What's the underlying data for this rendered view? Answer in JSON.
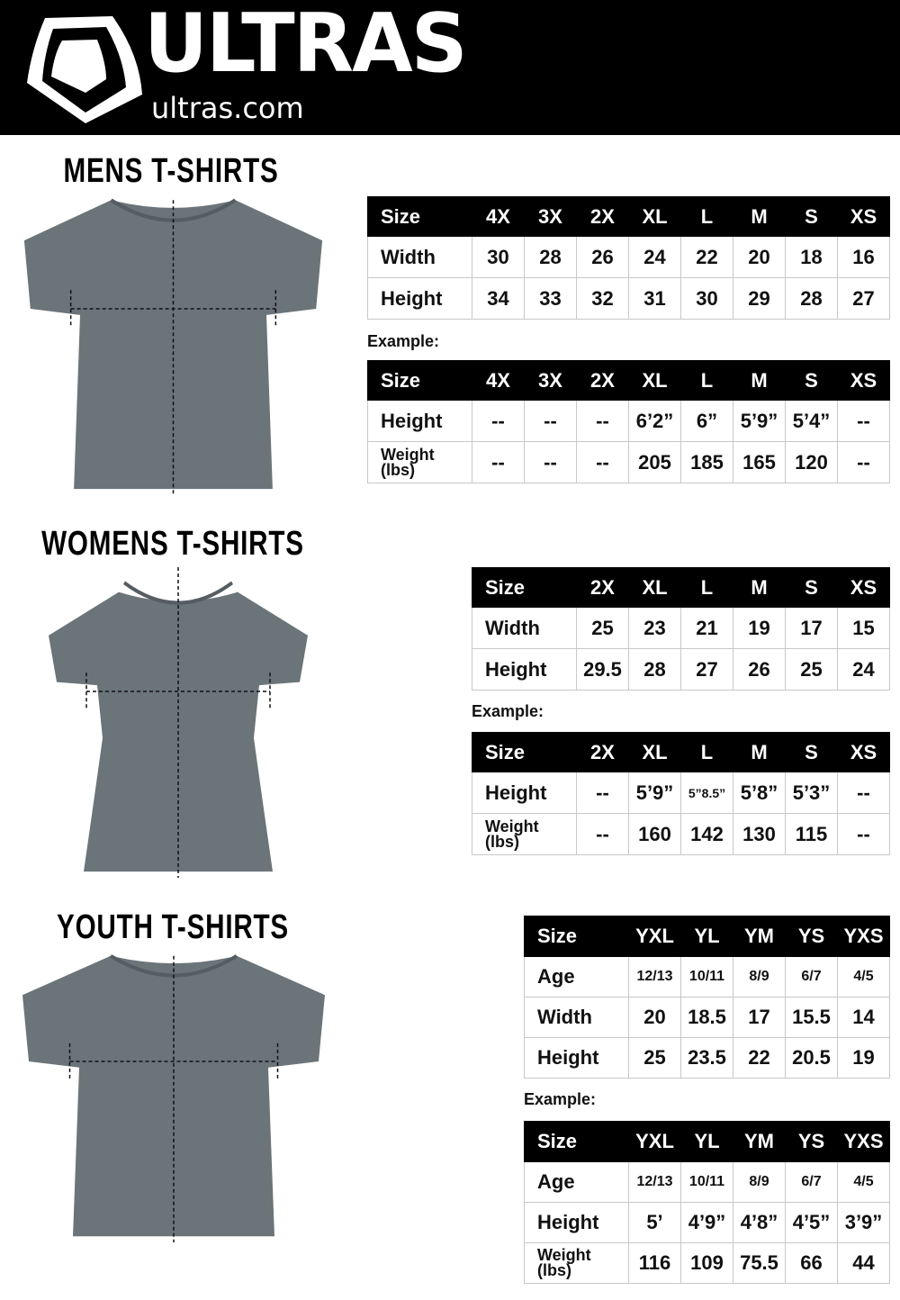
{
  "brand": {
    "name": "ULTRAS",
    "url": "ultras.com"
  },
  "sections": [
    {
      "title": "MENS T-SHIRTS",
      "size_chart": {
        "headers": [
          "Size",
          "4X",
          "3X",
          "2X",
          "XL",
          "L",
          "M",
          "S",
          "XS"
        ],
        "rows": [
          [
            "Width",
            "30",
            "28",
            "26",
            "24",
            "22",
            "20",
            "18",
            "16"
          ],
          [
            "Height",
            "34",
            "33",
            "32",
            "31",
            "30",
            "29",
            "28",
            "27"
          ]
        ]
      },
      "example_label": "Example:",
      "example_chart": {
        "headers": [
          "Size",
          "4X",
          "3X",
          "2X",
          "XL",
          "L",
          "M",
          "S",
          "XS"
        ],
        "rows": [
          [
            "Height",
            "--",
            "--",
            "--",
            "6’2”",
            "6”",
            "5’9”",
            "5’4”",
            "--"
          ],
          [
            "Weight (lbs)",
            "--",
            "--",
            "--",
            "205",
            "185",
            "165",
            "120",
            "--"
          ]
        ]
      }
    },
    {
      "title": "WOMENS T-SHIRTS",
      "size_chart": {
        "headers": [
          "Size",
          "2X",
          "XL",
          "L",
          "M",
          "S",
          "XS"
        ],
        "rows": [
          [
            "Width",
            "25",
            "23",
            "21",
            "19",
            "17",
            "15"
          ],
          [
            "Height",
            "29.5",
            "28",
            "27",
            "26",
            "25",
            "24"
          ]
        ]
      },
      "example_label": "Example:",
      "example_chart": {
        "headers": [
          "Size",
          "2X",
          "XL",
          "L",
          "M",
          "S",
          "XS"
        ],
        "rows": [
          [
            "Height",
            "--",
            "5’9”",
            "5”8.5”",
            "5’8”",
            "5’3”",
            "--"
          ],
          [
            "Weight (lbs)",
            "--",
            "160",
            "142",
            "130",
            "115",
            "--"
          ]
        ]
      }
    },
    {
      "title": "YOUTH T-SHIRTS",
      "size_chart": {
        "headers": [
          "Size",
          "YXL",
          "YL",
          "YM",
          "YS",
          "YXS"
        ],
        "rows": [
          [
            "Age",
            "12/13",
            "10/11",
            "8/9",
            "6/7",
            "4/5"
          ],
          [
            "Width",
            "20",
            "18.5",
            "17",
            "15.5",
            "14"
          ],
          [
            "Height",
            "25",
            "23.5",
            "22",
            "20.5",
            "19"
          ]
        ]
      },
      "example_label": "Example:",
      "example_chart": {
        "headers": [
          "Size",
          "YXL",
          "YL",
          "YM",
          "YS",
          "YXS"
        ],
        "rows": [
          [
            "Age",
            "12/13",
            "10/11",
            "8/9",
            "6/7",
            "4/5"
          ],
          [
            "Height",
            "5’",
            "4’9”",
            "4’8”",
            "4’5”",
            "3’9”"
          ],
          [
            "Weight (lbs)",
            "116",
            "109",
            "75.5",
            "66",
            "44"
          ]
        ]
      }
    }
  ],
  "colors": {
    "header_bg": "#000000",
    "shirt": "#6b7479"
  }
}
